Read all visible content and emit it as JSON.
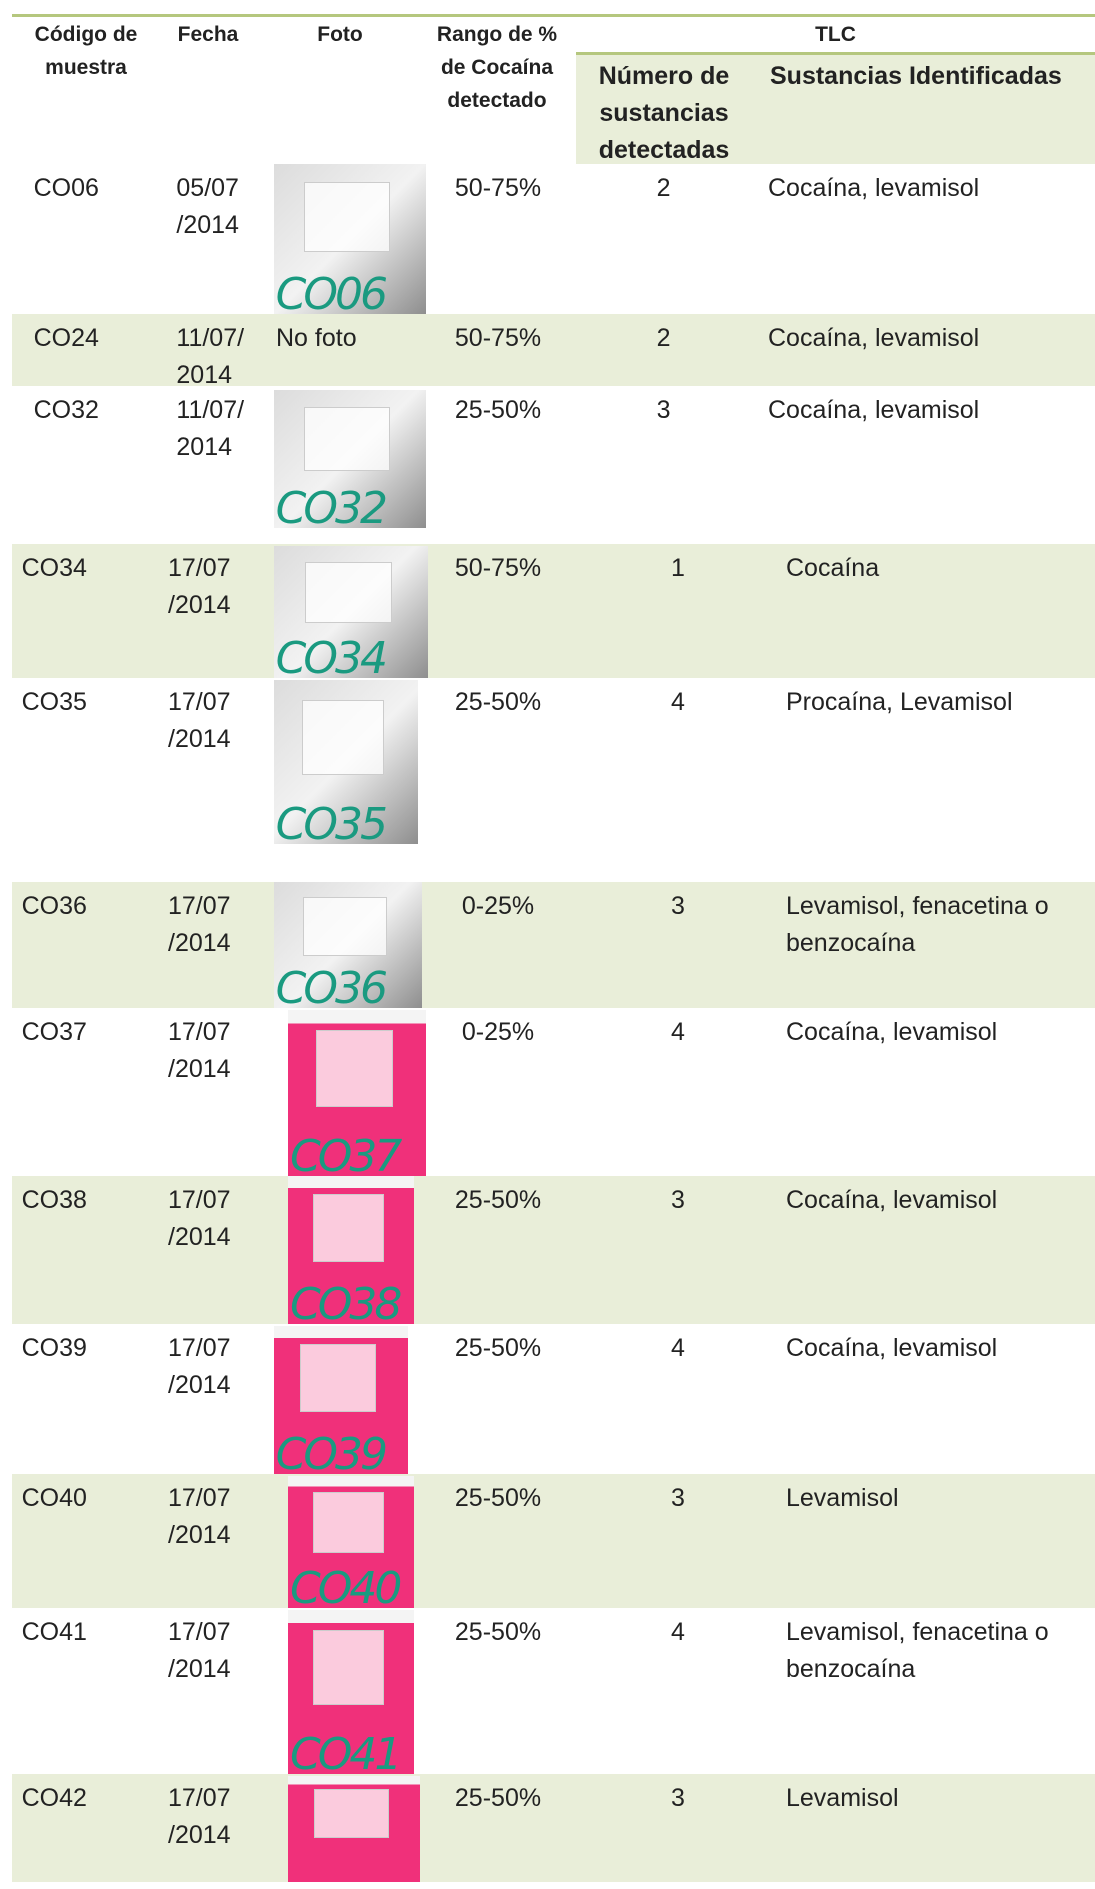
{
  "header": {
    "code": "Código de muestra",
    "date": "Fecha",
    "photo": "Foto",
    "range": "Rango de % de Cocaína detectado",
    "tlc": "TLC",
    "count": "Número de sustancias detectadas",
    "substances": "Sustancias Identificadas"
  },
  "rows": [
    {
      "code": "CO06",
      "date": "05/07/2014",
      "photo_label": "CO06",
      "range": "50-75%",
      "count": 2,
      "substances": "Cocaína, levamisol"
    },
    {
      "code": "CO24",
      "date": "11/07/2014",
      "no_photo": "No foto",
      "range": "50-75%",
      "count": 2,
      "substances": "Cocaína, levamisol"
    },
    {
      "code": "CO32",
      "date": "11/07/2014",
      "photo_label": "CO32",
      "range": "25-50%",
      "count": 3,
      "substances": "Cocaína, levamisol"
    },
    {
      "code": "CO34",
      "date": "17/07/2014",
      "photo_label": "CO34",
      "range": "50-75%",
      "count": 1,
      "substances": "Cocaína"
    },
    {
      "code": "CO35",
      "date": "17/07/2014",
      "photo_label": "CO35",
      "range": "25-50%",
      "count": 4,
      "substances": "Procaína, Levamisol"
    },
    {
      "code": "CO36",
      "date": "17/07/2014",
      "photo_label": "CO36",
      "range": "0-25%",
      "count": 3,
      "substances": "Levamisol, fenacetina o benzocaína"
    },
    {
      "code": "CO37",
      "date": "17/07/2014",
      "photo_label": "CO37",
      "range": "0-25%",
      "count": 4,
      "substances": "Cocaína, levamisol"
    },
    {
      "code": "CO38",
      "date": "17/07/2014",
      "photo_label": "CO38",
      "range": "25-50%",
      "count": 3,
      "substances": "Cocaína, levamisol"
    },
    {
      "code": "CO39",
      "date": "17/07/2014",
      "photo_label": "CO39",
      "range": "25-50%",
      "count": 4,
      "substances": "Cocaína, levamisol"
    },
    {
      "code": "CO40",
      "date": "17/07/2014",
      "photo_label": "CO40",
      "range": "25-50%",
      "count": 3,
      "substances": "Levamisol"
    },
    {
      "code": "CO41",
      "date": "17/07/2014",
      "photo_label": "CO41",
      "range": "25-50%",
      "count": 4,
      "substances": "Levamisol, fenacetina o benzocaína"
    },
    {
      "code": "CO42",
      "date": "17/07/2014",
      "range": "25-50%",
      "count": 3,
      "substances": "Levamisol"
    }
  ]
}
